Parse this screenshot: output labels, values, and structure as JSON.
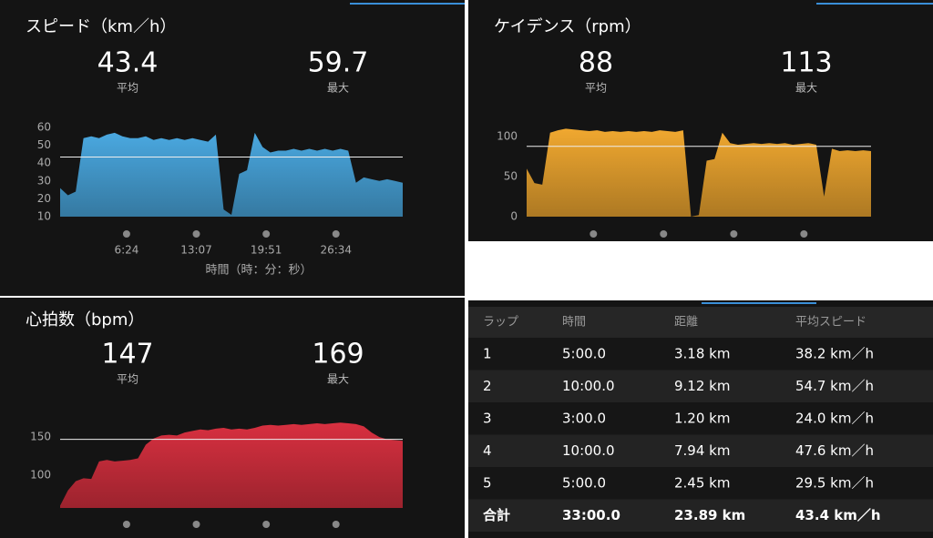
{
  "panels": [
    {
      "title": "スピード（km／h）",
      "stats": [
        {
          "value": 43.4,
          "label": "平均"
        },
        {
          "value": 59.7,
          "label": "最大"
        }
      ],
      "chart": {
        "type": "area",
        "color": "#4aa8e0",
        "ylim": [
          10,
          60
        ],
        "yticks": [
          10,
          20,
          30,
          40,
          50,
          60
        ],
        "xlim": [
          0,
          33
        ],
        "xticks": [
          {
            "value": 6.4,
            "label": "6:24"
          },
          {
            "value": 13.12,
            "label": "13:07"
          },
          {
            "value": 19.85,
            "label": "19:51"
          },
          {
            "value": 26.57,
            "label": "26:34"
          }
        ],
        "xlabel": "時間（時：分：秒）",
        "values": [
          26,
          22,
          24,
          54,
          55,
          54,
          56,
          57,
          55,
          54,
          54,
          55,
          53,
          54,
          53,
          54,
          53,
          54,
          53,
          52,
          56,
          14,
          11,
          34,
          36,
          57,
          49,
          46,
          47,
          47,
          48,
          47,
          48,
          47,
          48,
          47,
          48,
          47,
          29,
          32,
          31,
          30,
          31,
          30,
          29
        ]
      }
    },
    {
      "title": "ケイデンス（rpm）",
      "stats": [
        {
          "value": 88,
          "label": "平均"
        },
        {
          "value": 113,
          "label": "最大"
        }
      ],
      "chart": {
        "type": "area",
        "color": "#f0a830",
        "ylim": [
          0,
          115
        ],
        "yticks": [
          0,
          50,
          100
        ],
        "xlim": [
          0,
          33
        ],
        "values": [
          60,
          42,
          40,
          105,
          108,
          110,
          109,
          108,
          107,
          108,
          106,
          107,
          106,
          107,
          106,
          107,
          106,
          108,
          107,
          106,
          108,
          0,
          2,
          70,
          72,
          105,
          92,
          90,
          91,
          92,
          91,
          92,
          91,
          92,
          90,
          91,
          92,
          90,
          25,
          85,
          82,
          83,
          82,
          83,
          82
        ]
      }
    },
    {
      "title": "心拍数（bpm）",
      "stats": [
        {
          "value": 147,
          "label": "平均"
        },
        {
          "value": 169,
          "label": "最大"
        }
      ],
      "chart": {
        "type": "area",
        "color": "#d83040",
        "ylim": [
          57,
          174
        ],
        "yticks": [
          100,
          150
        ],
        "xlim": [
          0,
          33
        ],
        "values": [
          60,
          80,
          92,
          96,
          95,
          118,
          120,
          118,
          119,
          120,
          122,
          140,
          148,
          152,
          153,
          152,
          156,
          158,
          160,
          159,
          161,
          162,
          160,
          161,
          160,
          162,
          165,
          166,
          165,
          166,
          167,
          166,
          167,
          168,
          167,
          168,
          169,
          168,
          167,
          164,
          156,
          150,
          147,
          146,
          145
        ]
      }
    }
  ],
  "table": {
    "header": [
      "ラップ",
      "時間",
      "距離",
      "平均スピード"
    ],
    "rows": [
      [
        "1",
        "5:00.0",
        "3.18 km",
        "38.2 km／h"
      ],
      [
        "2",
        "10:00.0",
        "9.12 km",
        "54.7 km／h"
      ],
      [
        "3",
        "3:00.0",
        "1.20 km",
        "24.0 km／h"
      ],
      [
        "4",
        "10:00.0",
        "7.94 km",
        "47.6 km／h"
      ],
      [
        "5",
        "5:00.0",
        "2.45 km",
        "29.5 km／h"
      ]
    ],
    "total": [
      "合計",
      "33:00.0",
      "23.89 km",
      "43.4 km／h"
    ]
  }
}
